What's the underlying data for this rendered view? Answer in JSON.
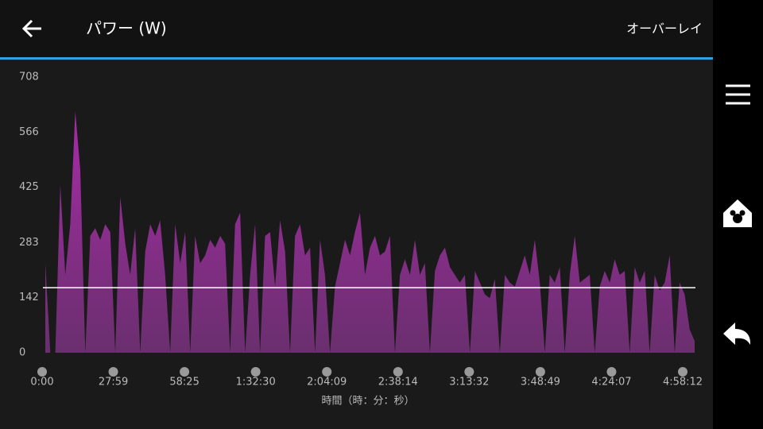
{
  "header": {
    "title": "パワー (W)",
    "overlay": "オーバーレイ"
  },
  "chart_data": {
    "type": "area",
    "color": "#9a2b9a",
    "ylim": [
      0,
      708
    ],
    "yticks": [
      0,
      142,
      283,
      425,
      566,
      708
    ],
    "xtick_labels": [
      "0:00",
      "27:59",
      "58:25",
      "1:32:30",
      "2:04:09",
      "2:38:14",
      "3:13:32",
      "3:48:49",
      "4:24:07",
      "4:58:12"
    ],
    "xlabel": "時間（時：分：秒）",
    "average": 167,
    "values": [
      230,
      0,
      0,
      430,
      200,
      330,
      620,
      470,
      0,
      300,
      320,
      290,
      330,
      310,
      0,
      400,
      280,
      200,
      320,
      0,
      260,
      330,
      300,
      340,
      200,
      0,
      330,
      230,
      310,
      0,
      300,
      230,
      250,
      290,
      270,
      300,
      280,
      0,
      330,
      360,
      0,
      200,
      330,
      0,
      300,
      310,
      170,
      340,
      260,
      0,
      300,
      330,
      250,
      270,
      0,
      290,
      200,
      0,
      170,
      230,
      290,
      250,
      310,
      360,
      200,
      270,
      300,
      250,
      260,
      300,
      0,
      200,
      240,
      200,
      290,
      200,
      230,
      0,
      210,
      250,
      270,
      220,
      200,
      180,
      200,
      0,
      210,
      180,
      150,
      140,
      190,
      0,
      200,
      180,
      170,
      210,
      250,
      200,
      290,
      180,
      0,
      200,
      180,
      220,
      0,
      200,
      300,
      180,
      190,
      200,
      0,
      170,
      210,
      180,
      240,
      200,
      210,
      0,
      220,
      180,
      210,
      0,
      200,
      160,
      180,
      250,
      0,
      180,
      150,
      60,
      30
    ]
  }
}
